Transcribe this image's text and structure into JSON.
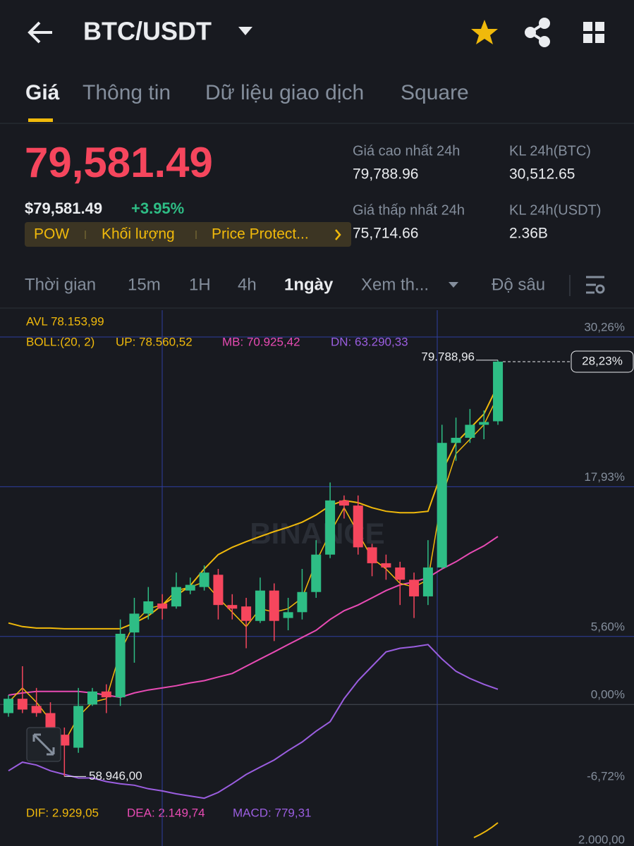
{
  "header": {
    "symbol": "BTC/USDT"
  },
  "tabs": [
    "Giá",
    "Thông tin",
    "Dữ liệu giao dịch",
    "Square"
  ],
  "price": {
    "last": "79,581.49",
    "usd": "$79,581.49",
    "change": "+3.95%",
    "tags": [
      "POW",
      "Khối lượng",
      "Price Protect..."
    ]
  },
  "stats": [
    {
      "label": "Giá cao nhất 24h",
      "value": "79,788.96"
    },
    {
      "label": "KL 24h(BTC)",
      "value": "30,512.65"
    },
    {
      "label": "Giá thấp nhất 24h",
      "value": "75,714.66"
    },
    {
      "label": "KL 24h(USDT)",
      "value": "2.36B"
    }
  ],
  "intervals": [
    "Thời gian",
    "15m",
    "1H",
    "4h",
    "1ngày",
    "Xem th...",
    "Độ sâu"
  ],
  "indicators": {
    "avl": "AVL 78.153,99",
    "boll": "BOLL:(20, 2)",
    "up": "UP: 78.560,52",
    "mb": "MB: 70.925,42",
    "dn": "DN: 63.290,33",
    "dif": "DIF: 2.929,05",
    "dea": "DEA: 2.149,74",
    "macd": "MACD: 779,31",
    "macd_tick": "2.000,00"
  },
  "chart_data": {
    "type": "candlestick",
    "watermark": "BINANCE",
    "categories": [
      null,
      null,
      null,
      null,
      null,
      null,
      null,
      null,
      null,
      null,
      null,
      null,
      null,
      null,
      null,
      null,
      null,
      null,
      null,
      null,
      null,
      null,
      null,
      null,
      null,
      null,
      null,
      null,
      null,
      null,
      null,
      null,
      null,
      null,
      null,
      null
    ],
    "open": [
      -0.71,
      0.47,
      -0.12,
      -0.71,
      -2.49,
      -3.56,
      0.0,
      1.07,
      0.59,
      5.93,
      7.48,
      8.31,
      8.07,
      9.38,
      9.67,
      10.68,
      8.19,
      8.07,
      6.88,
      9.38,
      7.12,
      7.6,
      9.26,
      12.34,
      16.8,
      16.38,
      12.94,
      11.63,
      11.28,
      10.27,
      8.9,
      11.28,
      21.54,
      21.96,
      23.03,
      23.32
    ],
    "close": [
      0.47,
      -0.42,
      -0.71,
      -2.49,
      -3.38,
      -0.12,
      1.07,
      0.59,
      5.82,
      7.48,
      8.49,
      7.89,
      9.67,
      9.85,
      10.86,
      8.19,
      7.89,
      6.88,
      9.38,
      6.88,
      7.6,
      9.26,
      12.34,
      16.8,
      16.38,
      12.94,
      11.63,
      11.28,
      10.27,
      8.9,
      11.28,
      21.54,
      21.96,
      23.03,
      23.26,
      28.23
    ],
    "high": [
      0.77,
      3.15,
      1.36,
      0.18,
      -1.9,
      1.36,
      1.36,
      1.66,
      7.0,
      8.78,
      9.67,
      9.08,
      10.86,
      10.45,
      11.45,
      11.16,
      9.08,
      8.78,
      10.45,
      9.97,
      8.78,
      11.16,
      13.53,
      18.28,
      17.21,
      17.21,
      13.23,
      12.34,
      11.75,
      10.86,
      13.53,
      23.03,
      23.62,
      24.33,
      24.21,
      28.35
    ],
    "low": [
      -1.01,
      -0.71,
      -1.01,
      -3.09,
      -5.93,
      -3.98,
      -0.12,
      -0.71,
      -0.12,
      3.44,
      7.0,
      7.0,
      7.89,
      9.08,
      9.38,
      7.0,
      7.0,
      4.63,
      6.71,
      5.22,
      6.11,
      7.0,
      8.78,
      12.05,
      15.31,
      12.34,
      10.56,
      10.27,
      8.19,
      7.12,
      8.19,
      11.16,
      20.06,
      21.54,
      21.84,
      23.03
    ],
    "up_color": "#2ebd85",
    "down_color": "#f6465d",
    "series": [
      {
        "color": "#f0b90b",
        "values": [
          6.71,
          6.41,
          6.29,
          6.29,
          6.23,
          6.23,
          6.23,
          6.23,
          6.23,
          6.71,
          7.3,
          8.19,
          8.96,
          9.79,
          11.16,
          12.34,
          12.94,
          13.41,
          13.83,
          14.24,
          14.6,
          15.01,
          15.61,
          16.38,
          16.8,
          16.62,
          16.2,
          15.91,
          15.79,
          15.79,
          15.91,
          19.17,
          21.54,
          22.73,
          23.92,
          26.29
        ]
      },
      {
        "color": "#e84bb4",
        "values": [
          0.77,
          0.95,
          1.07,
          1.07,
          1.07,
          1.07,
          0.95,
          0.77,
          0.59,
          0.95,
          1.19,
          1.36,
          1.54,
          1.78,
          1.96,
          2.26,
          2.55,
          3.15,
          3.74,
          4.33,
          4.93,
          5.52,
          6.11,
          7.0,
          7.72,
          8.19,
          8.78,
          9.38,
          9.85,
          10.09,
          10.45,
          11.16,
          11.75,
          12.46,
          13.06,
          13.83
        ]
      },
      {
        "color": "#9b5ee0",
        "values": [
          -5.46,
          -4.75,
          -4.99,
          -5.46,
          -5.76,
          -6.05,
          -6.05,
          -6.35,
          -6.53,
          -6.65,
          -6.94,
          -7.12,
          -7.36,
          -7.54,
          -7.72,
          -7.24,
          -6.53,
          -5.76,
          -5.16,
          -4.57,
          -3.8,
          -3.09,
          -2.2,
          -1.42,
          0.47,
          1.96,
          3.15,
          4.33,
          4.63,
          4.75,
          4.93,
          3.74,
          2.73,
          2.14,
          1.66,
          1.25
        ]
      },
      {
        "color": "#f0b90b",
        "values": [
          0.18,
          1.36,
          0.18,
          -1.31,
          -3.09,
          -1.01,
          0.18,
          0.47,
          4.33,
          6.71,
          7.89,
          8.19,
          9.38,
          9.67,
          10.09,
          8.78,
          7.6,
          6.41,
          7.89,
          7.6,
          7.89,
          8.78,
          11.75,
          14.12,
          16.2,
          14.12,
          12.05,
          11.16,
          9.97,
          9.67,
          10.27,
          17.09,
          20.65,
          21.84,
          23.03,
          25.4
        ]
      }
    ],
    "ylim": [
      -6.72,
      30.26
    ],
    "yticks": [
      {
        "value": 30.26,
        "label": "30,26%"
      },
      {
        "value": 17.93,
        "label": "17,93%"
      },
      {
        "value": 5.6,
        "label": "5,60%"
      },
      {
        "value": 0,
        "label": "0,00%"
      },
      {
        "value": -6.72,
        "label": "-6,72%"
      }
    ],
    "high_label": "79.788,96",
    "low_label": "58.946,00",
    "last_label": "28,23%",
    "grid": true
  }
}
